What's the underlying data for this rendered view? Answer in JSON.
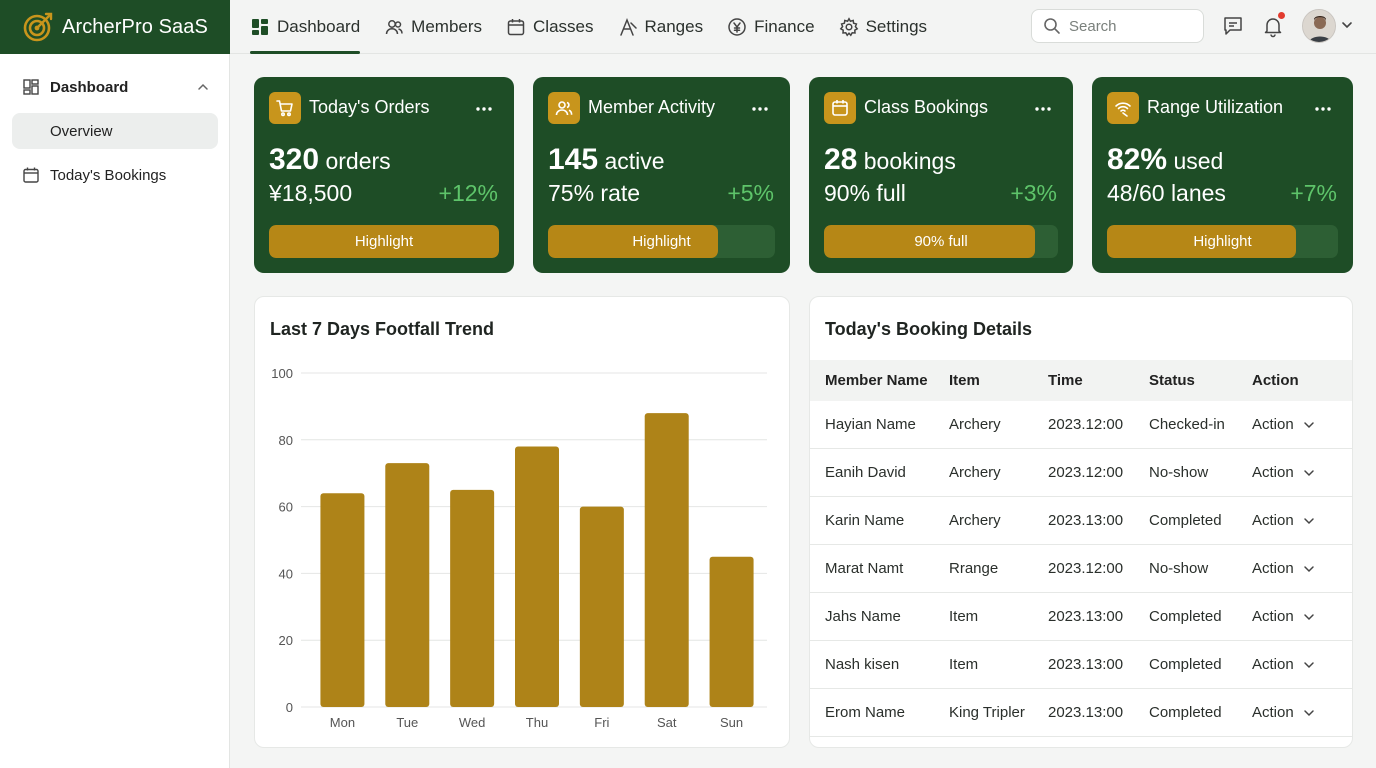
{
  "brand": {
    "name": "ArcherPro SaaS"
  },
  "nav": [
    {
      "label": "Dashboard",
      "icon": "dashboard-icon",
      "active": true
    },
    {
      "label": "Members",
      "icon": "members-icon"
    },
    {
      "label": "Classes",
      "icon": "calendar-icon"
    },
    {
      "label": "Ranges",
      "icon": "ranges-icon"
    },
    {
      "label": "Finance",
      "icon": "yen-icon"
    },
    {
      "label": "Settings",
      "icon": "gear-icon"
    }
  ],
  "search": {
    "placeholder": "Search"
  },
  "sidebar": {
    "group": "Dashboard",
    "items": [
      {
        "label": "Overview",
        "active": true
      },
      {
        "label": "Today's Bookings"
      }
    ]
  },
  "stats": [
    {
      "title": "Today's Orders",
      "main_value": "320",
      "main_unit": "orders",
      "sub": "¥18,500",
      "delta": "+12%",
      "bar_label": "Highlight",
      "bar_fill": 1.0
    },
    {
      "title": "Member Activity",
      "main_value": "145",
      "main_unit": "active",
      "sub": "75% rate",
      "delta": "+5%",
      "bar_label": "Highlight",
      "bar_fill": 0.75
    },
    {
      "title": "Class Bookings",
      "main_value": "28",
      "main_unit": "bookings",
      "sub": "90% full",
      "delta": "+3%",
      "bar_label": "90% full",
      "bar_fill": 0.9
    },
    {
      "title": "Range Utilization",
      "main_value": "82%",
      "main_unit": "used",
      "sub": "48/60 lanes",
      "delta": "+7%",
      "bar_label": "Highlight",
      "bar_fill": 0.82
    }
  ],
  "footfall": {
    "title": "Last 7 Days Footfall Trend"
  },
  "chart_data": {
    "type": "bar",
    "title": "Last 7 Days Footfall Trend",
    "categories": [
      "Mon",
      "Tue",
      "Wed",
      "Thu",
      "Fri",
      "Sat",
      "Sun"
    ],
    "values": [
      64,
      73,
      65,
      78,
      60,
      88,
      45
    ],
    "yticks": [
      "0",
      "20",
      "40",
      "60",
      "80",
      "100"
    ],
    "ylim": [
      0,
      100
    ],
    "grid": true,
    "color": "#ae8318"
  },
  "bookings": {
    "title": "Today's Booking Details",
    "columns": [
      "Member Name",
      "Item",
      "Time",
      "Status",
      "Action"
    ],
    "rows": [
      {
        "name": "Hayian Name",
        "item": "Archery",
        "time": "2023.12:00",
        "status": "Checked-in",
        "status_type": "checked",
        "action": "Action"
      },
      {
        "name": "Eanih David",
        "item": "Archery",
        "time": "2023.12:00",
        "status": "No-show",
        "status_type": "noshow",
        "action": "Action"
      },
      {
        "name": "Karin Name",
        "item": "Archery",
        "time": "2023.13:00",
        "status": "Completed",
        "status_type": "completed",
        "action": "Action"
      },
      {
        "name": "Marat Namt",
        "item": "Rrange",
        "time": "2023.12:00",
        "status": "No-show",
        "status_type": "noshow",
        "action": "Action"
      },
      {
        "name": "Jahs Name",
        "item": "Item",
        "time": "2023.13:00",
        "status": "Completed",
        "status_type": "completed",
        "action": "Action"
      },
      {
        "name": "Nash kisen",
        "item": "Item",
        "time": "2023.13:00",
        "status": "Completed",
        "status_type": "completed",
        "action": "Action"
      },
      {
        "name": "Erom Name",
        "item": "King Tripler",
        "time": "2023.13:00",
        "status": "Completed",
        "status_type": "completed",
        "action": "Action"
      }
    ]
  },
  "colors": {
    "primary": "#1e4d26",
    "accent": "#c8951c",
    "positive": "#5ec46a",
    "danger": "#b22a20"
  }
}
